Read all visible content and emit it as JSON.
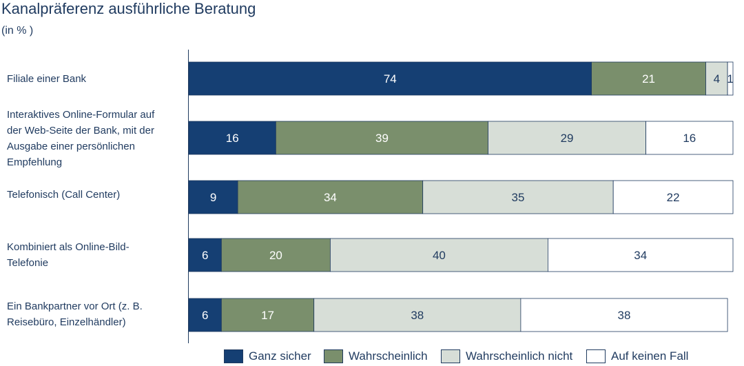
{
  "chart_data": {
    "type": "bar",
    "orientation": "horizontal-stacked-100",
    "title": "Kanalpräferenz ausführliche Beratung",
    "subtitle": "(in % )",
    "categories": [
      "Filiale einer Bank",
      "Interaktives Online-Formular auf der Web-Seite der Bank, mit der Ausgabe einer persönlichen Empfehlung",
      "Telefonisch (Call Center)",
      "Kombiniert als Online-Bild-Telefonie",
      "Ein Bankpartner vor Ort (z. B. Reisebüro, Einzelhändler)"
    ],
    "category_lines": [
      [
        "Filiale einer Bank"
      ],
      [
        "Interaktives Online-Formular auf",
        "der Web-Seite der Bank, mit der",
        "Ausgabe einer persönlichen",
        "Empfehlung"
      ],
      [
        "Telefonisch (Call Center)"
      ],
      [
        "Kombiniert als Online-Bild-",
        "Telefonie"
      ],
      [
        "Ein Bankpartner vor Ort (z. B.",
        "Reisebüro, Einzelhändler)"
      ]
    ],
    "series": [
      {
        "name": "Ganz sicher",
        "color": "#153f73",
        "label_color": "#ffffff",
        "values": [
          74,
          16,
          9,
          6,
          6
        ]
      },
      {
        "name": "Wahrscheinlich",
        "color": "#7a8f6c",
        "label_color": "#ffffff",
        "values": [
          21,
          39,
          34,
          20,
          17
        ]
      },
      {
        "name": "Wahrscheinlich nicht",
        "color": "#d7ded7",
        "label_color": "#1f3a5f",
        "values": [
          4,
          29,
          35,
          40,
          38
        ]
      },
      {
        "name": "Auf keinen Fall",
        "color": "#ffffff",
        "label_color": "#1f3a5f",
        "values": [
          1,
          16,
          22,
          34,
          38
        ]
      }
    ],
    "xlim": [
      0,
      100
    ],
    "grid": false,
    "legend_position": "bottom"
  }
}
